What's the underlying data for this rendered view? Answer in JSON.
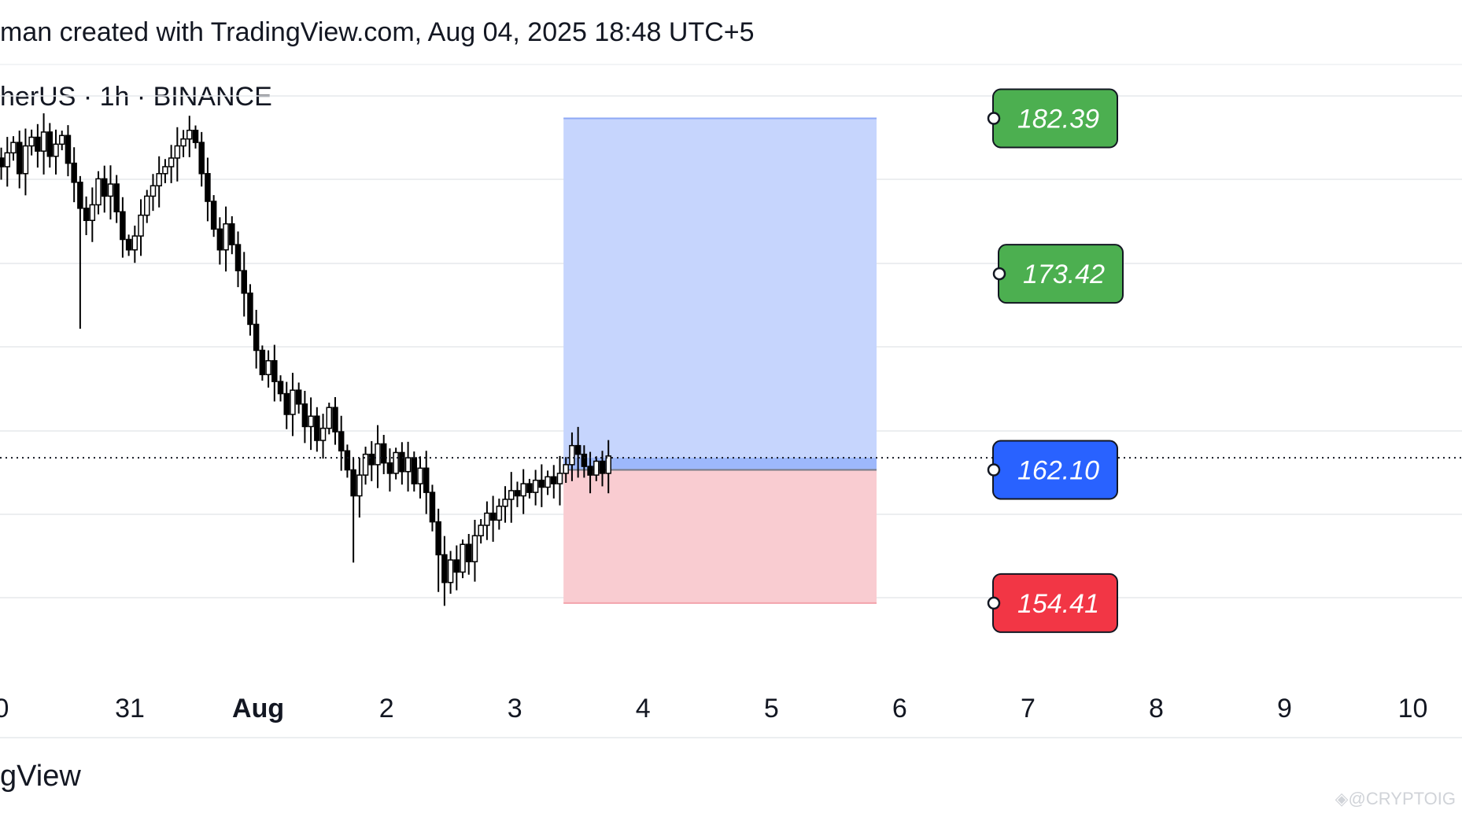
{
  "header": {
    "title": "man created with TradingView.com, Aug 04, 2025 18:48 UTC+5",
    "symbol": "herUS · 1h · BINANCE"
  },
  "footer": {
    "brand": "gView",
    "watermark": "◈@CRYPTOIG"
  },
  "colors": {
    "profit_zone": "#c6d5fd",
    "profit_zone_overlap": "#9db8fb",
    "loss_zone": "#f9ccd1",
    "tp_tag": "#4caf50",
    "entry_tag": "#2962ff",
    "sl_tag": "#f23645",
    "candle": "#000000",
    "grid": "#e6e8ec"
  },
  "chart_data": {
    "type": "candlestick",
    "x_axis": {
      "tick_labels": [
        "0",
        "31",
        "Aug",
        "2",
        "3",
        "4",
        "5",
        "6",
        "7",
        "8",
        "9",
        "10"
      ],
      "bold_labels": [
        "Aug"
      ]
    },
    "y_range": [
      152.0,
      185.5
    ],
    "current_price": 162.8,
    "position": {
      "type": "long",
      "entry": 162.1,
      "targets": [
        182.39,
        173.42
      ],
      "stop": 154.41,
      "levels": [
        {
          "value": 182.39,
          "label": "182.39",
          "kind": "target"
        },
        {
          "value": 173.42,
          "label": "173.42",
          "kind": "target"
        },
        {
          "value": 162.1,
          "label": "162.10",
          "kind": "entry"
        },
        {
          "value": 154.41,
          "label": "154.41",
          "kind": "stop"
        }
      ],
      "start_date_index": 4.38,
      "end_date_index": 6.82
    },
    "price_series_close": [
      180.1,
      179.6,
      180.4,
      181.0,
      179.2,
      180.8,
      181.3,
      180.5,
      181.6,
      180.2,
      180.9,
      181.4,
      179.8,
      178.7,
      177.2,
      176.5,
      177.4,
      178.9,
      177.9,
      178.6,
      177.0,
      175.4,
      174.8,
      175.6,
      176.8,
      177.9,
      178.5,
      179.2,
      179.6,
      180.1,
      180.8,
      181.2,
      181.7,
      181.0,
      179.2,
      177.6,
      176.0,
      174.8,
      176.3,
      175.1,
      173.6,
      172.3,
      170.5,
      169.0,
      167.6,
      168.4,
      167.2,
      166.5,
      165.3,
      166.7,
      165.9,
      164.6,
      165.2,
      163.8,
      164.5,
      165.7,
      164.3,
      163.2,
      162.1,
      160.6,
      161.8,
      163.0,
      162.4,
      163.6,
      162.5,
      161.9,
      163.1,
      162.0,
      162.8,
      161.3,
      162.2,
      160.8,
      159.1,
      157.2,
      155.6,
      156.9,
      156.2,
      157.8,
      156.8,
      158.3,
      158.9,
      159.6,
      159.2,
      160.0,
      160.4,
      160.9,
      160.6,
      161.3,
      160.8,
      161.5,
      161.1,
      161.7,
      161.3,
      161.9,
      162.4,
      163.5,
      163.0,
      162.3,
      161.8,
      162.6,
      161.9,
      162.9
    ]
  }
}
